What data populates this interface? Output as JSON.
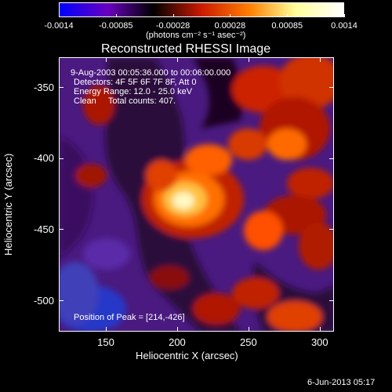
{
  "colorbar": {
    "ticks": [
      "-0.0014",
      "-0.00085",
      "-0.00028",
      "0.00028",
      "0.00085",
      "0.0014"
    ],
    "unit_label": "(photons cm⁻² s⁻¹ asec⁻²)",
    "colors": [
      "#0000ff",
      "#6a00c0",
      "#000000",
      "#cc1a00",
      "#ff8000",
      "#ffff99",
      "#ffffff"
    ]
  },
  "plot": {
    "title": "Reconstructed RHESSI Image",
    "xlabel": "Heliocentric X (arcsec)",
    "ylabel": "Heliocentric Y (arcsec)",
    "x_ticks": [
      "150",
      "200",
      "250",
      "300"
    ],
    "y_ticks": [
      "-350",
      "-400",
      "-450",
      "-500"
    ],
    "xlim": [
      117,
      310
    ],
    "ylim": [
      -522,
      -329
    ]
  },
  "overlay": {
    "line1": "9-Aug-2003 00:05:36.000 to 00:06:00.000",
    "line2": "Detectors: 4F 5F 6F 7F 8F, Att 0",
    "line3": "Energy Range: 12.0 - 25.0 keV",
    "line4": "Clean     Total counts: 407.",
    "peak": "Position of Peak = [214,-426]"
  },
  "footer": {
    "date": "6-Jun-2013 05:17"
  }
}
